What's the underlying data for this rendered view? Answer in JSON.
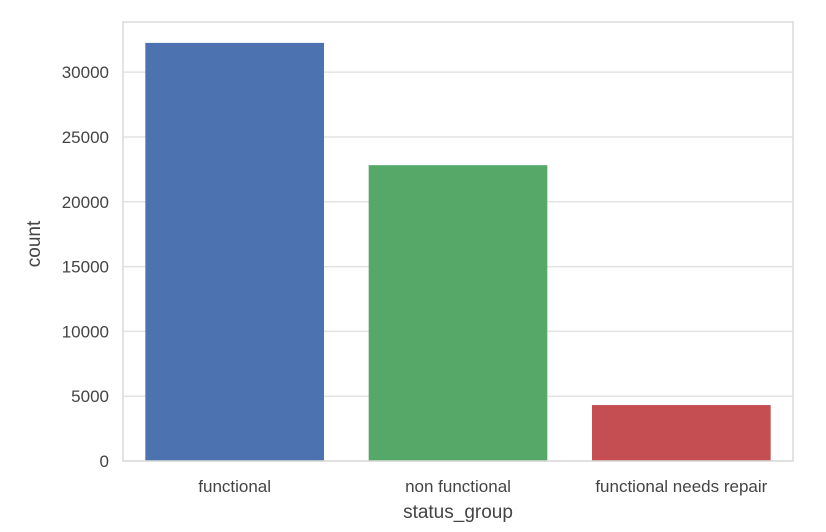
{
  "chart_data": {
    "type": "bar",
    "categories": [
      "functional",
      "non functional",
      "functional needs repair"
    ],
    "values": [
      32259,
      22824,
      4317
    ],
    "colors": [
      "#4c72b0",
      "#55a868",
      "#c44e52"
    ],
    "xlabel": "status_group",
    "ylabel": "count",
    "ylim": [
      0,
      33871
    ],
    "yticks": [
      0,
      5000,
      10000,
      15000,
      20000,
      25000,
      30000
    ],
    "ytick_labels": [
      "0",
      "5000",
      "10000",
      "15000",
      "20000",
      "25000",
      "30000"
    ],
    "grid": "horizontal",
    "style": {
      "background": "#ffffff",
      "grid_color": "#e3e3e3",
      "frame_color": "#dadada",
      "text_color": "#444444"
    }
  }
}
